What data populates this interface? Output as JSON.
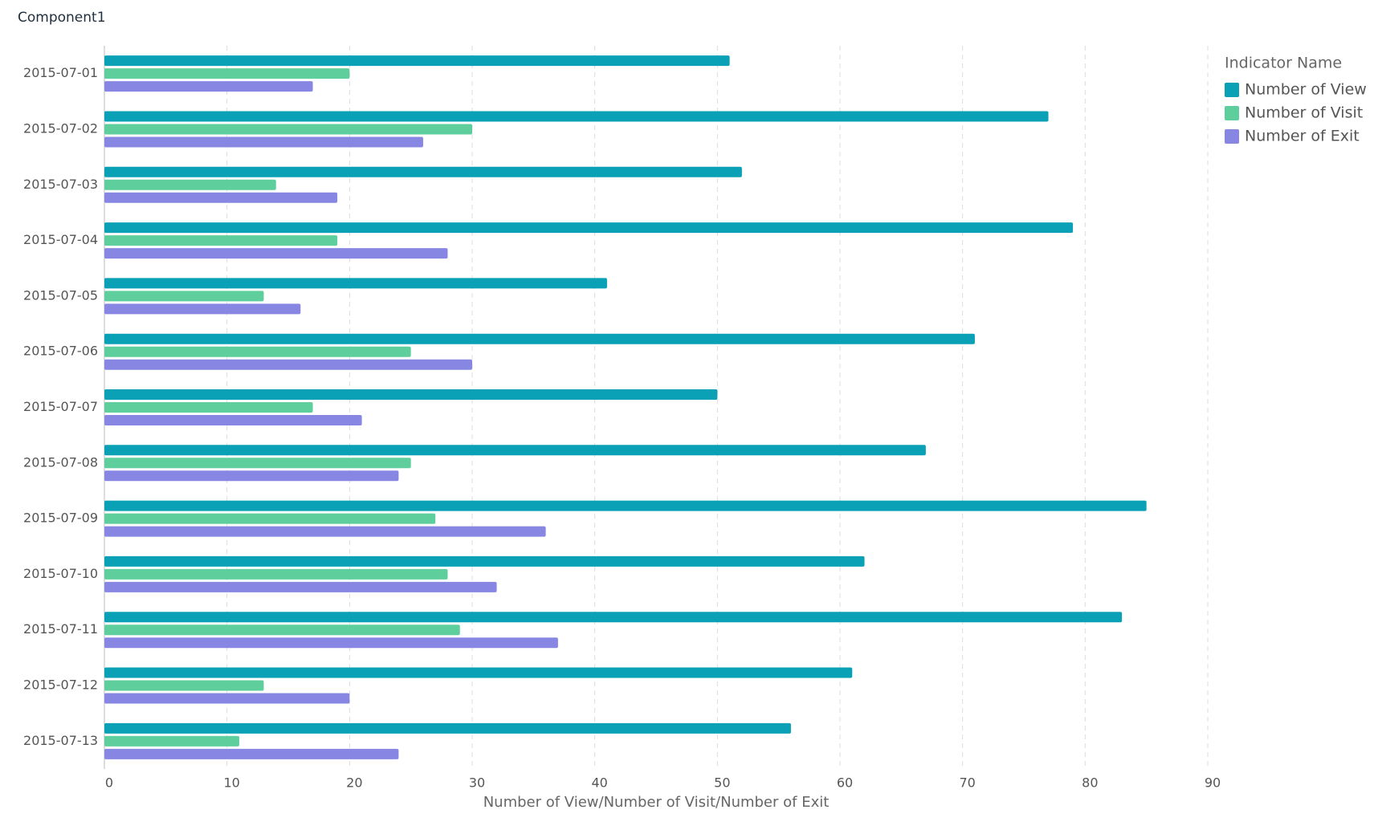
{
  "chart_data": {
    "type": "hbar",
    "title": "Component1",
    "x_label": "Number of View/Number of Visit/Number of Exit",
    "legend_title": "Indicator Name",
    "categories": [
      "2015-07-01",
      "2015-07-02",
      "2015-07-03",
      "2015-07-04",
      "2015-07-05",
      "2015-07-06",
      "2015-07-07",
      "2015-07-08",
      "2015-07-09",
      "2015-07-10",
      "2015-07-11",
      "2015-07-12",
      "2015-07-13"
    ],
    "series": [
      {
        "name": "Number of View",
        "color": "#0aa0b5",
        "values": [
          51,
          77,
          52,
          79,
          41,
          71,
          50,
          67,
          85,
          62,
          83,
          61,
          56
        ]
      },
      {
        "name": "Number of Visit",
        "color": "#5ecf9c",
        "values": [
          20,
          30,
          14,
          19,
          13,
          25,
          17,
          25,
          27,
          28,
          29,
          13,
          11
        ]
      },
      {
        "name": "Number of Exit",
        "color": "#8787e3",
        "values": [
          17,
          26,
          19,
          28,
          16,
          30,
          21,
          24,
          36,
          32,
          37,
          20,
          24
        ]
      }
    ],
    "xlim": [
      0,
      90
    ],
    "xticks": [
      0,
      10,
      20,
      30,
      40,
      50,
      60,
      70,
      80,
      90
    ],
    "grid": true,
    "legend": "top-right"
  }
}
